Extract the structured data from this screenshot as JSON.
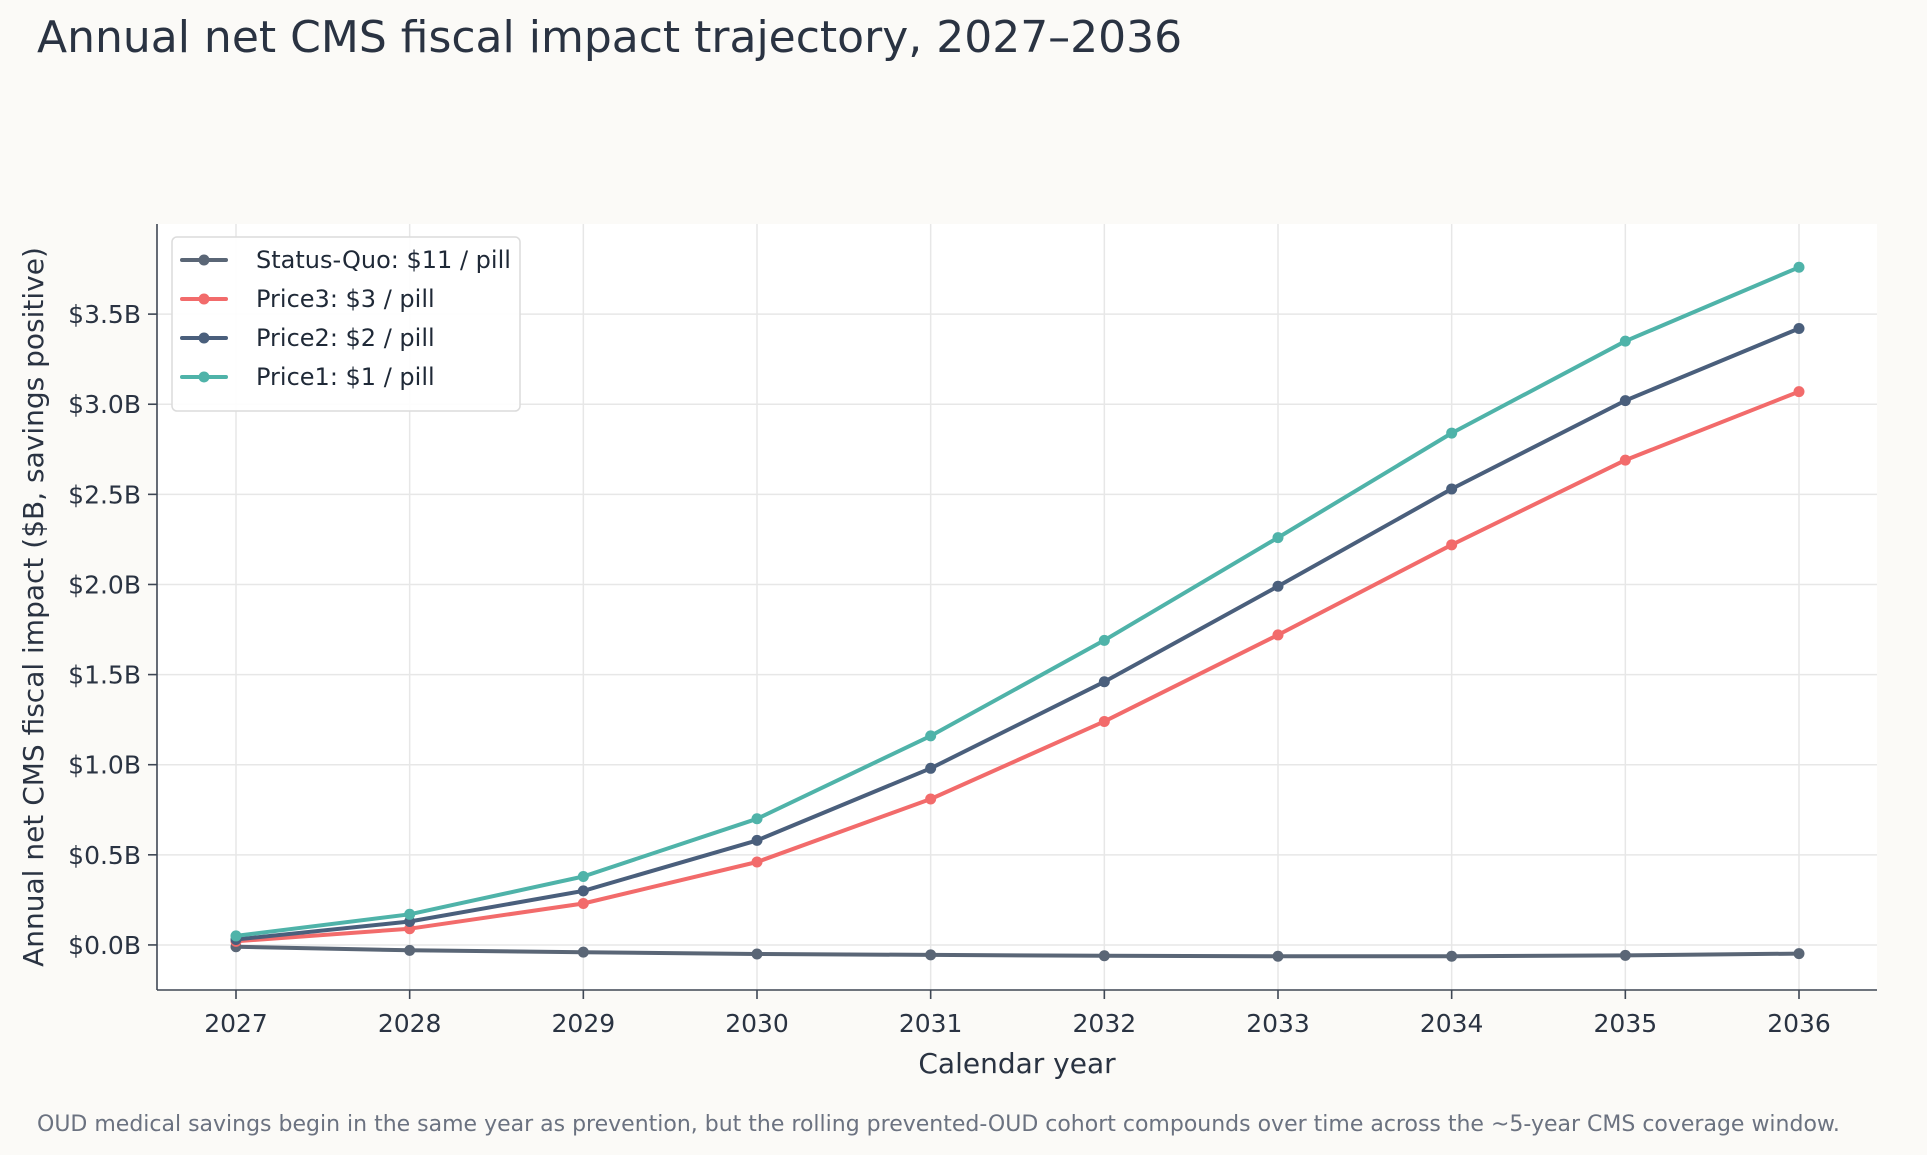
{
  "chart_data": {
    "type": "line",
    "title": "Annual net CMS fiscal impact trajectory, 2027–2036",
    "subtitle": "OUD medical savings begin in the same year as prevention, but the rolling prevented-OUD cohort compounds over time across the ~5-year CMS coverage window.",
    "xlabel": "Calendar year",
    "ylabel": "Annual net CMS fiscal impact ($B, savings positive)",
    "x": [
      "2027",
      "2028",
      "2029",
      "2030",
      "2031",
      "2032",
      "2033",
      "2034",
      "2035",
      "2036"
    ],
    "yticks": [
      0.0,
      0.5,
      1.0,
      1.5,
      2.0,
      2.5,
      3.0,
      3.5
    ],
    "ytick_labels": [
      "$0.0B",
      "$0.5B",
      "$1.0B",
      "$1.5B",
      "$2.0B",
      "$2.5B",
      "$3.0B",
      "$3.5B"
    ],
    "ylim": [
      -0.25,
      4.0
    ],
    "grid": true,
    "legend_position": "top-left",
    "series": [
      {
        "name": "Status-Quo: $11 / pill",
        "color": "#5a6676",
        "values": [
          -0.01,
          -0.03,
          -0.04,
          -0.05,
          -0.055,
          -0.06,
          -0.063,
          -0.063,
          -0.058,
          -0.048
        ]
      },
      {
        "name": "Price3: $3 / pill",
        "color": "#f26b6b",
        "values": [
          0.02,
          0.09,
          0.23,
          0.46,
          0.81,
          1.24,
          1.72,
          2.22,
          2.69,
          3.07
        ]
      },
      {
        "name": "Price2: $2 / pill",
        "color": "#4a5f7c",
        "values": [
          0.03,
          0.13,
          0.3,
          0.58,
          0.98,
          1.46,
          1.99,
          2.53,
          3.02,
          3.42
        ]
      },
      {
        "name": "Price1: $1 / pill",
        "color": "#4fb3a9",
        "values": [
          0.05,
          0.17,
          0.38,
          0.7,
          1.16,
          1.69,
          2.26,
          2.84,
          3.35,
          3.76
        ]
      }
    ]
  }
}
